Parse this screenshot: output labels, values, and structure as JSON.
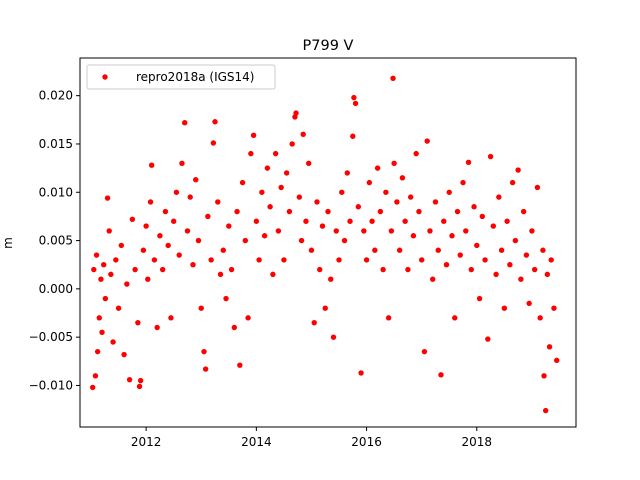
{
  "chart_data": {
    "type": "scatter",
    "title": "P799 V",
    "xlabel": "",
    "ylabel": "m",
    "xlim": [
      2010.8,
      2019.8
    ],
    "ylim": [
      -0.0143,
      0.0239
    ],
    "xticks": [
      2012,
      2014,
      2016,
      2018
    ],
    "xtick_labels": [
      "2012",
      "2014",
      "2016",
      "2018"
    ],
    "yticks": [
      -0.01,
      -0.005,
      0.0,
      0.005,
      0.01,
      0.015,
      0.02
    ],
    "ytick_labels": [
      "−0.010",
      "−0.005",
      "0.000",
      "0.005",
      "0.010",
      "0.015",
      "0.020"
    ],
    "grid": false,
    "legend_position": "top-left",
    "series": [
      {
        "name": "repro2018a (IGS14)",
        "color": "#ff0000",
        "marker": "circle",
        "points": [
          [
            2011.03,
            -0.0102
          ],
          [
            2011.05,
            0.002
          ],
          [
            2011.08,
            -0.009
          ],
          [
            2011.1,
            0.0035
          ],
          [
            2011.12,
            -0.0065
          ],
          [
            2011.15,
            -0.003
          ],
          [
            2011.18,
            0.001
          ],
          [
            2011.2,
            -0.0045
          ],
          [
            2011.23,
            0.0025
          ],
          [
            2011.26,
            -0.001
          ],
          [
            2011.3,
            0.0094
          ],
          [
            2011.33,
            0.006
          ],
          [
            2011.36,
            0.0015
          ],
          [
            2011.4,
            -0.0055
          ],
          [
            2011.45,
            0.003
          ],
          [
            2011.5,
            -0.002
          ],
          [
            2011.55,
            0.0045
          ],
          [
            2011.6,
            -0.0068
          ],
          [
            2011.65,
            0.0005
          ],
          [
            2011.7,
            -0.0094
          ],
          [
            2011.75,
            0.0072
          ],
          [
            2011.8,
            0.002
          ],
          [
            2011.85,
            -0.0035
          ],
          [
            2011.88,
            -0.0101
          ],
          [
            2011.9,
            -0.0095
          ],
          [
            2011.95,
            0.004
          ],
          [
            2012.0,
            0.0065
          ],
          [
            2012.03,
            0.001
          ],
          [
            2012.08,
            0.009
          ],
          [
            2012.1,
            0.0128
          ],
          [
            2012.15,
            0.003
          ],
          [
            2012.2,
            -0.004
          ],
          [
            2012.25,
            0.0055
          ],
          [
            2012.3,
            0.002
          ],
          [
            2012.35,
            0.008
          ],
          [
            2012.4,
            0.0045
          ],
          [
            2012.45,
            -0.003
          ],
          [
            2012.5,
            0.007
          ],
          [
            2012.55,
            0.01
          ],
          [
            2012.6,
            0.0035
          ],
          [
            2012.65,
            0.013
          ],
          [
            2012.7,
            0.0172
          ],
          [
            2012.75,
            0.006
          ],
          [
            2012.8,
            0.0095
          ],
          [
            2012.85,
            0.0025
          ],
          [
            2012.9,
            0.0113
          ],
          [
            2012.95,
            0.005
          ],
          [
            2013.0,
            -0.002
          ],
          [
            2013.05,
            -0.0065
          ],
          [
            2013.08,
            -0.0083
          ],
          [
            2013.12,
            0.0075
          ],
          [
            2013.18,
            0.003
          ],
          [
            2013.22,
            0.0151
          ],
          [
            2013.25,
            0.0173
          ],
          [
            2013.3,
            0.009
          ],
          [
            2013.35,
            0.0015
          ],
          [
            2013.4,
            0.004
          ],
          [
            2013.45,
            -0.001
          ],
          [
            2013.5,
            0.0065
          ],
          [
            2013.55,
            0.002
          ],
          [
            2013.6,
            -0.004
          ],
          [
            2013.65,
            0.008
          ],
          [
            2013.7,
            -0.0079
          ],
          [
            2013.75,
            0.011
          ],
          [
            2013.8,
            0.005
          ],
          [
            2013.85,
            -0.003
          ],
          [
            2013.9,
            0.014
          ],
          [
            2013.95,
            0.0159
          ],
          [
            2014.0,
            0.007
          ],
          [
            2014.05,
            0.003
          ],
          [
            2014.1,
            0.01
          ],
          [
            2014.15,
            0.0055
          ],
          [
            2014.2,
            0.0125
          ],
          [
            2014.25,
            0.0085
          ],
          [
            2014.3,
            0.0015
          ],
          [
            2014.35,
            0.014
          ],
          [
            2014.4,
            0.006
          ],
          [
            2014.45,
            0.0105
          ],
          [
            2014.5,
            0.003
          ],
          [
            2014.55,
            0.012
          ],
          [
            2014.6,
            0.008
          ],
          [
            2014.65,
            0.015
          ],
          [
            2014.7,
            0.0178
          ],
          [
            2014.72,
            0.0182
          ],
          [
            2014.78,
            0.0095
          ],
          [
            2014.82,
            0.005
          ],
          [
            2014.85,
            0.016
          ],
          [
            2014.9,
            0.007
          ],
          [
            2014.95,
            0.013
          ],
          [
            2015.0,
            0.004
          ],
          [
            2015.05,
            -0.0035
          ],
          [
            2015.1,
            0.009
          ],
          [
            2015.15,
            0.002
          ],
          [
            2015.2,
            0.0065
          ],
          [
            2015.25,
            -0.002
          ],
          [
            2015.3,
            0.008
          ],
          [
            2015.35,
            0.001
          ],
          [
            2015.4,
            -0.005
          ],
          [
            2015.45,
            0.006
          ],
          [
            2015.5,
            0.003
          ],
          [
            2015.55,
            0.01
          ],
          [
            2015.6,
            0.005
          ],
          [
            2015.65,
            0.012
          ],
          [
            2015.7,
            0.007
          ],
          [
            2015.75,
            0.0158
          ],
          [
            2015.77,
            0.0198
          ],
          [
            2015.8,
            0.0192
          ],
          [
            2015.85,
            0.0085
          ],
          [
            2015.9,
            -0.0087
          ],
          [
            2015.95,
            0.006
          ],
          [
            2016.0,
            0.003
          ],
          [
            2016.05,
            0.011
          ],
          [
            2016.1,
            0.007
          ],
          [
            2016.15,
            0.004
          ],
          [
            2016.2,
            0.0125
          ],
          [
            2016.25,
            0.008
          ],
          [
            2016.3,
            0.002
          ],
          [
            2016.35,
            0.01
          ],
          [
            2016.4,
            -0.003
          ],
          [
            2016.45,
            0.006
          ],
          [
            2016.48,
            0.0218
          ],
          [
            2016.5,
            0.013
          ],
          [
            2016.55,
            0.009
          ],
          [
            2016.6,
            0.004
          ],
          [
            2016.65,
            0.0115
          ],
          [
            2016.7,
            0.007
          ],
          [
            2016.75,
            0.002
          ],
          [
            2016.8,
            0.0095
          ],
          [
            2016.85,
            0.0055
          ],
          [
            2016.9,
            0.014
          ],
          [
            2016.95,
            0.008
          ],
          [
            2017.0,
            0.003
          ],
          [
            2017.05,
            -0.0065
          ],
          [
            2017.1,
            0.0153
          ],
          [
            2017.15,
            0.006
          ],
          [
            2017.2,
            0.001
          ],
          [
            2017.25,
            0.009
          ],
          [
            2017.3,
            0.004
          ],
          [
            2017.35,
            -0.0089
          ],
          [
            2017.4,
            0.007
          ],
          [
            2017.45,
            0.0025
          ],
          [
            2017.5,
            0.01
          ],
          [
            2017.55,
            0.0055
          ],
          [
            2017.6,
            -0.003
          ],
          [
            2017.65,
            0.008
          ],
          [
            2017.7,
            0.0035
          ],
          [
            2017.75,
            0.011
          ],
          [
            2017.8,
            0.006
          ],
          [
            2017.85,
            0.0131
          ],
          [
            2017.9,
            0.002
          ],
          [
            2017.95,
            0.0085
          ],
          [
            2018.0,
            0.0045
          ],
          [
            2018.05,
            -0.001
          ],
          [
            2018.1,
            0.0075
          ],
          [
            2018.15,
            0.003
          ],
          [
            2018.2,
            -0.0052
          ],
          [
            2018.25,
            0.0137
          ],
          [
            2018.3,
            0.0065
          ],
          [
            2018.35,
            0.0015
          ],
          [
            2018.4,
            0.0095
          ],
          [
            2018.45,
            0.004
          ],
          [
            2018.5,
            -0.002
          ],
          [
            2018.55,
            0.007
          ],
          [
            2018.6,
            0.0025
          ],
          [
            2018.65,
            0.011
          ],
          [
            2018.7,
            0.005
          ],
          [
            2018.75,
            0.0123
          ],
          [
            2018.8,
            0.001
          ],
          [
            2018.85,
            0.008
          ],
          [
            2018.9,
            0.0035
          ],
          [
            2018.95,
            -0.0015
          ],
          [
            2019.0,
            0.006
          ],
          [
            2019.05,
            0.002
          ],
          [
            2019.1,
            0.0105
          ],
          [
            2019.15,
            -0.003
          ],
          [
            2019.2,
            0.004
          ],
          [
            2019.22,
            -0.009
          ],
          [
            2019.25,
            -0.0126
          ],
          [
            2019.28,
            0.0015
          ],
          [
            2019.32,
            -0.006
          ],
          [
            2019.35,
            0.003
          ],
          [
            2019.4,
            -0.002
          ],
          [
            2019.45,
            -0.0074
          ]
        ]
      }
    ]
  }
}
